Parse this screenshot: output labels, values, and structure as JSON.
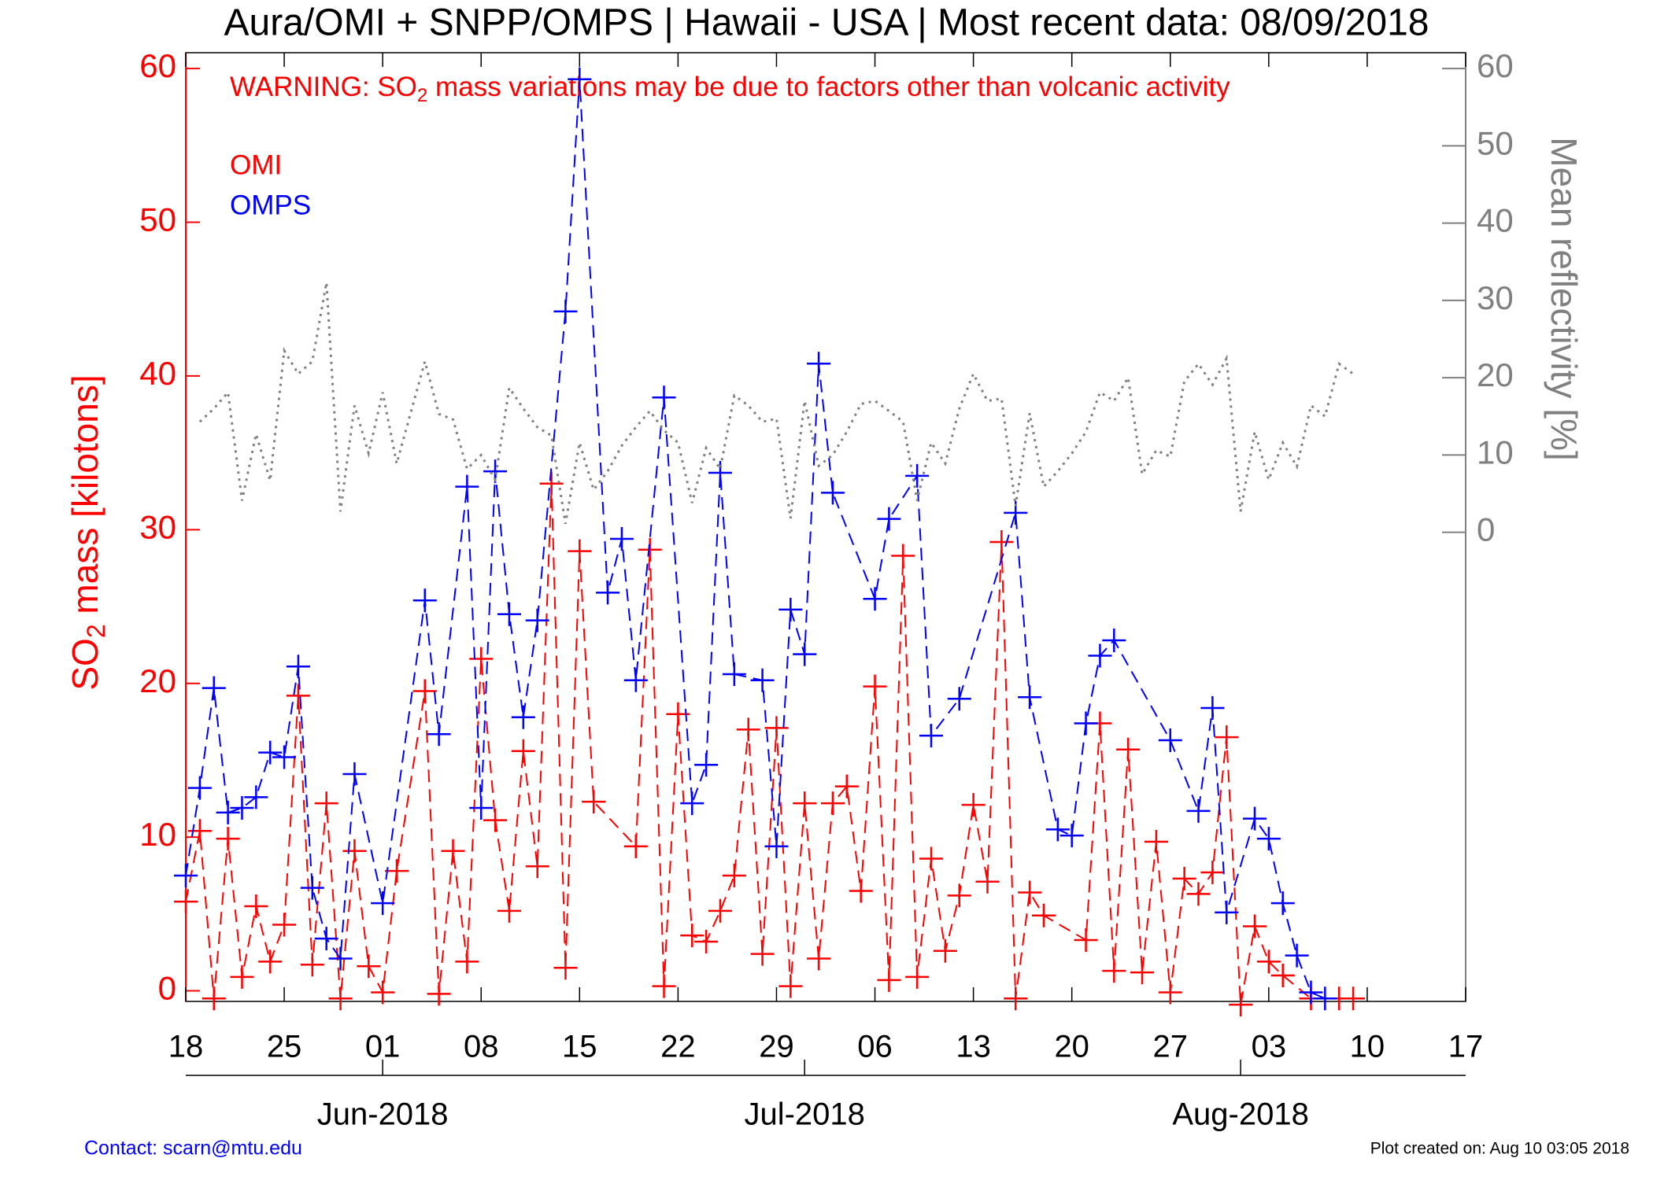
{
  "chart_data": {
    "type": "line",
    "title": "Aura/OMI + SNPP/OMPS | Hawaii - USA | Most recent data: 08/09/2018",
    "annotation": [
      "WARNING: SO",
      "2",
      " mass variations may be due to factors other than volcanic activity"
    ],
    "annotation_color": "#ff0000",
    "y_label": [
      "SO",
      "2",
      " mass [kilotons]"
    ],
    "y_color": "#ff0000",
    "y2_label": "Mean reflectivity [%]",
    "y2_color": "#808080",
    "xlim": [
      "2018-05-18",
      "2018-08-17"
    ],
    "xticks": [
      {
        "value": "2018-05-18",
        "label": "18"
      },
      {
        "value": "2018-05-25",
        "label": "25"
      },
      {
        "value": "2018-06-01",
        "label": "01"
      },
      {
        "value": "2018-06-08",
        "label": "08"
      },
      {
        "value": "2018-06-15",
        "label": "15"
      },
      {
        "value": "2018-06-22",
        "label": "22"
      },
      {
        "value": "2018-06-29",
        "label": "29"
      },
      {
        "value": "2018-07-06",
        "label": "06"
      },
      {
        "value": "2018-07-13",
        "label": "13"
      },
      {
        "value": "2018-07-20",
        "label": "20"
      },
      {
        "value": "2018-07-27",
        "label": "27"
      },
      {
        "value": "2018-08-03",
        "label": "03"
      },
      {
        "value": "2018-08-10",
        "label": "10"
      },
      {
        "value": "2018-08-17",
        "label": "17"
      }
    ],
    "x2ticks": [
      {
        "value": "2018-06-01",
        "label": "Jun-2018"
      },
      {
        "value": "2018-07-01",
        "label": "Jul-2018"
      },
      {
        "value": "2018-08-01",
        "label": "Aug-2018"
      }
    ],
    "ylim": [
      -0.69,
      61.03
    ],
    "yticks": [
      0,
      10,
      20,
      30,
      40,
      50,
      60
    ],
    "y2lim": [
      -60.7,
      62.05
    ],
    "y2ticks": [
      0,
      10,
      20,
      30,
      40,
      50,
      60
    ],
    "series": [
      {
        "name": "OMI",
        "color": "#ff0000",
        "line_style": "dashed",
        "marker": "+",
        "x": [
          "2018-05-18",
          "2018-05-19",
          "2018-05-20",
          "2018-05-21",
          "2018-05-22",
          "2018-05-23",
          "2018-05-24",
          "2018-05-25",
          "2018-05-26",
          "2018-05-27",
          "2018-05-28",
          "2018-05-29",
          "2018-05-30",
          "2018-05-31",
          "2018-06-01",
          "2018-06-02",
          "2018-06-04",
          "2018-06-05",
          "2018-06-06",
          "2018-06-07",
          "2018-06-08",
          "2018-06-09",
          "2018-06-10",
          "2018-06-11",
          "2018-06-12",
          "2018-06-13",
          "2018-06-14",
          "2018-06-15",
          "2018-06-16",
          "2018-06-19",
          "2018-06-20",
          "2018-06-21",
          "2018-06-22",
          "2018-06-23",
          "2018-06-24",
          "2018-06-25",
          "2018-06-26",
          "2018-06-27",
          "2018-06-28",
          "2018-06-29",
          "2018-06-30",
          "2018-07-01",
          "2018-07-02",
          "2018-07-03",
          "2018-07-04",
          "2018-07-05",
          "2018-07-06",
          "2018-07-07",
          "2018-07-08",
          "2018-07-09",
          "2018-07-10",
          "2018-07-11",
          "2018-07-12",
          "2018-07-13",
          "2018-07-14",
          "2018-07-15",
          "2018-07-16",
          "2018-07-17",
          "2018-07-18",
          "2018-07-21",
          "2018-07-22",
          "2018-07-23",
          "2018-07-24",
          "2018-07-25",
          "2018-07-26",
          "2018-07-27",
          "2018-07-28",
          "2018-07-29",
          "2018-07-30",
          "2018-07-31",
          "2018-08-01",
          "2018-08-02",
          "2018-08-03",
          "2018-08-04",
          "2018-08-06",
          "2018-08-08",
          "2018-08-09"
        ],
        "values": [
          5.8,
          10.4,
          -0.5,
          9.9,
          0.9,
          5.5,
          1.9,
          4.3,
          19.2,
          1.7,
          12.2,
          -0.5,
          9.1,
          1.6,
          -0.1,
          7.8,
          19.5,
          -0.2,
          9.1,
          1.9,
          21.6,
          11.1,
          5.2,
          15.6,
          8.1,
          33.0,
          1.5,
          28.6,
          12.3,
          9.4,
          28.7,
          0.3,
          18.0,
          3.6,
          3.2,
          5.2,
          7.5,
          17.0,
          2.4,
          17.1,
          0.3,
          12.2,
          2.1,
          12.2,
          13.3,
          6.5,
          19.8,
          0.7,
          28.3,
          0.9,
          8.6,
          2.6,
          6.2,
          12.1,
          7.1,
          29.2,
          -0.5,
          6.4,
          4.9,
          3.3,
          17.4,
          1.3,
          15.7,
          1.2,
          9.7,
          -0.1,
          7.3,
          6.3,
          7.7,
          16.5,
          -0.9,
          4.2,
          1.9,
          1.0,
          -0.5,
          -0.5,
          -0.5
        ]
      },
      {
        "name": "OMPS",
        "color": "#0000ff",
        "line_style": "dashed",
        "marker": "+",
        "x": [
          "2018-05-18",
          "2018-05-19",
          "2018-05-20",
          "2018-05-21",
          "2018-05-22",
          "2018-05-23",
          "2018-05-24",
          "2018-05-25",
          "2018-05-26",
          "2018-05-27",
          "2018-05-28",
          "2018-05-29",
          "2018-05-30",
          "2018-06-01",
          "2018-06-04",
          "2018-06-05",
          "2018-06-07",
          "2018-06-08",
          "2018-06-09",
          "2018-06-10",
          "2018-06-11",
          "2018-06-12",
          "2018-06-14",
          "2018-06-15",
          "2018-06-17",
          "2018-06-18",
          "2018-06-19",
          "2018-06-21",
          "2018-06-23",
          "2018-06-24",
          "2018-06-25",
          "2018-06-26",
          "2018-06-28",
          "2018-06-29",
          "2018-06-30",
          "2018-07-01",
          "2018-07-02",
          "2018-07-03",
          "2018-07-06",
          "2018-07-07",
          "2018-07-09",
          "2018-07-10",
          "2018-07-12",
          "2018-07-16",
          "2018-07-17",
          "2018-07-19",
          "2018-07-20",
          "2018-07-21",
          "2018-07-22",
          "2018-07-23",
          "2018-07-27",
          "2018-07-29",
          "2018-07-30",
          "2018-07-31",
          "2018-08-02",
          "2018-08-03",
          "2018-08-04",
          "2018-08-05",
          "2018-08-06",
          "2018-08-07"
        ],
        "values": [
          7.5,
          13.2,
          19.7,
          11.6,
          11.9,
          12.6,
          15.5,
          15.2,
          21.1,
          6.7,
          3.4,
          2.1,
          14.1,
          5.7,
          25.4,
          16.7,
          32.8,
          11.9,
          33.8,
          24.5,
          17.8,
          24.1,
          44.2,
          59.3,
          25.9,
          29.4,
          20.2,
          38.6,
          12.2,
          14.7,
          33.7,
          20.6,
          20.2,
          9.4,
          24.8,
          21.9,
          40.8,
          32.4,
          25.5,
          30.7,
          33.5,
          16.6,
          19.0,
          31.1,
          19.1,
          10.5,
          10.1,
          17.4,
          21.8,
          22.8,
          16.3,
          11.7,
          18.4,
          5.1,
          11.2,
          9.9,
          5.7,
          2.3,
          -0.1,
          -0.5
        ]
      },
      {
        "color": "#808080",
        "line_style": "dotted",
        "axis": "y2",
        "x": [
          "2018-05-19",
          "2018-05-20",
          "2018-05-21",
          "2018-05-22",
          "2018-05-23",
          "2018-05-24",
          "2018-05-25",
          "2018-05-26",
          "2018-05-27",
          "2018-05-28",
          "2018-05-29",
          "2018-05-30",
          "2018-05-31",
          "2018-06-01",
          "2018-06-02",
          "2018-06-04",
          "2018-06-05",
          "2018-06-06",
          "2018-06-07",
          "2018-06-08",
          "2018-06-09",
          "2018-06-10",
          "2018-06-11",
          "2018-06-12",
          "2018-06-13",
          "2018-06-14",
          "2018-06-15",
          "2018-06-16",
          "2018-06-17",
          "2018-06-18",
          "2018-06-19",
          "2018-06-20",
          "2018-06-21",
          "2018-06-22",
          "2018-06-23",
          "2018-06-24",
          "2018-06-25",
          "2018-06-26",
          "2018-06-27",
          "2018-06-28",
          "2018-06-29",
          "2018-06-30",
          "2018-07-01",
          "2018-07-02",
          "2018-07-03",
          "2018-07-04",
          "2018-07-05",
          "2018-07-06",
          "2018-07-07",
          "2018-07-08",
          "2018-07-09",
          "2018-07-10",
          "2018-07-11",
          "2018-07-12",
          "2018-07-13",
          "2018-07-14",
          "2018-07-15",
          "2018-07-16",
          "2018-07-17",
          "2018-07-18",
          "2018-07-19",
          "2018-07-20",
          "2018-07-21",
          "2018-07-22",
          "2018-07-23",
          "2018-07-24",
          "2018-07-25",
          "2018-07-26",
          "2018-07-27",
          "2018-07-28",
          "2018-07-29",
          "2018-07-30",
          "2018-07-31",
          "2018-08-01",
          "2018-08-02",
          "2018-08-03",
          "2018-08-04",
          "2018-08-05",
          "2018-08-06",
          "2018-08-07",
          "2018-08-08",
          "2018-08-09"
        ],
        "values": [
          14.3,
          16.0,
          18.1,
          4.1,
          12.7,
          6.7,
          23.5,
          20.5,
          22.1,
          32.3,
          2.7,
          16.4,
          10.2,
          18.1,
          8.9,
          22.1,
          15.3,
          14.6,
          8.2,
          10.0,
          6.8,
          18.7,
          16.0,
          13.6,
          12.5,
          1.1,
          11.6,
          5.5,
          7.9,
          11.2,
          13.6,
          15.7,
          13.2,
          11.6,
          3.8,
          10.9,
          8.2,
          17.7,
          16.4,
          14.3,
          14.7,
          1.8,
          17.0,
          8.6,
          10.0,
          13.0,
          16.6,
          17.0,
          15.7,
          14.3,
          4.1,
          11.6,
          8.9,
          16.0,
          20.5,
          17.0,
          17.3,
          3.4,
          15.4,
          5.9,
          7.9,
          10.2,
          13.0,
          18.1,
          17.0,
          20.0,
          7.5,
          10.6,
          9.8,
          19.5,
          21.8,
          19.1,
          22.5,
          2.7,
          13.0,
          6.8,
          11.6,
          8.5,
          16.4,
          15.0,
          21.8,
          20.5
        ]
      }
    ],
    "footer_left": "Contact: scarn@mtu.edu",
    "footer_left_color": "#0000ff",
    "footer_right": "Plot created on: Aug 10 03:05 2018"
  }
}
